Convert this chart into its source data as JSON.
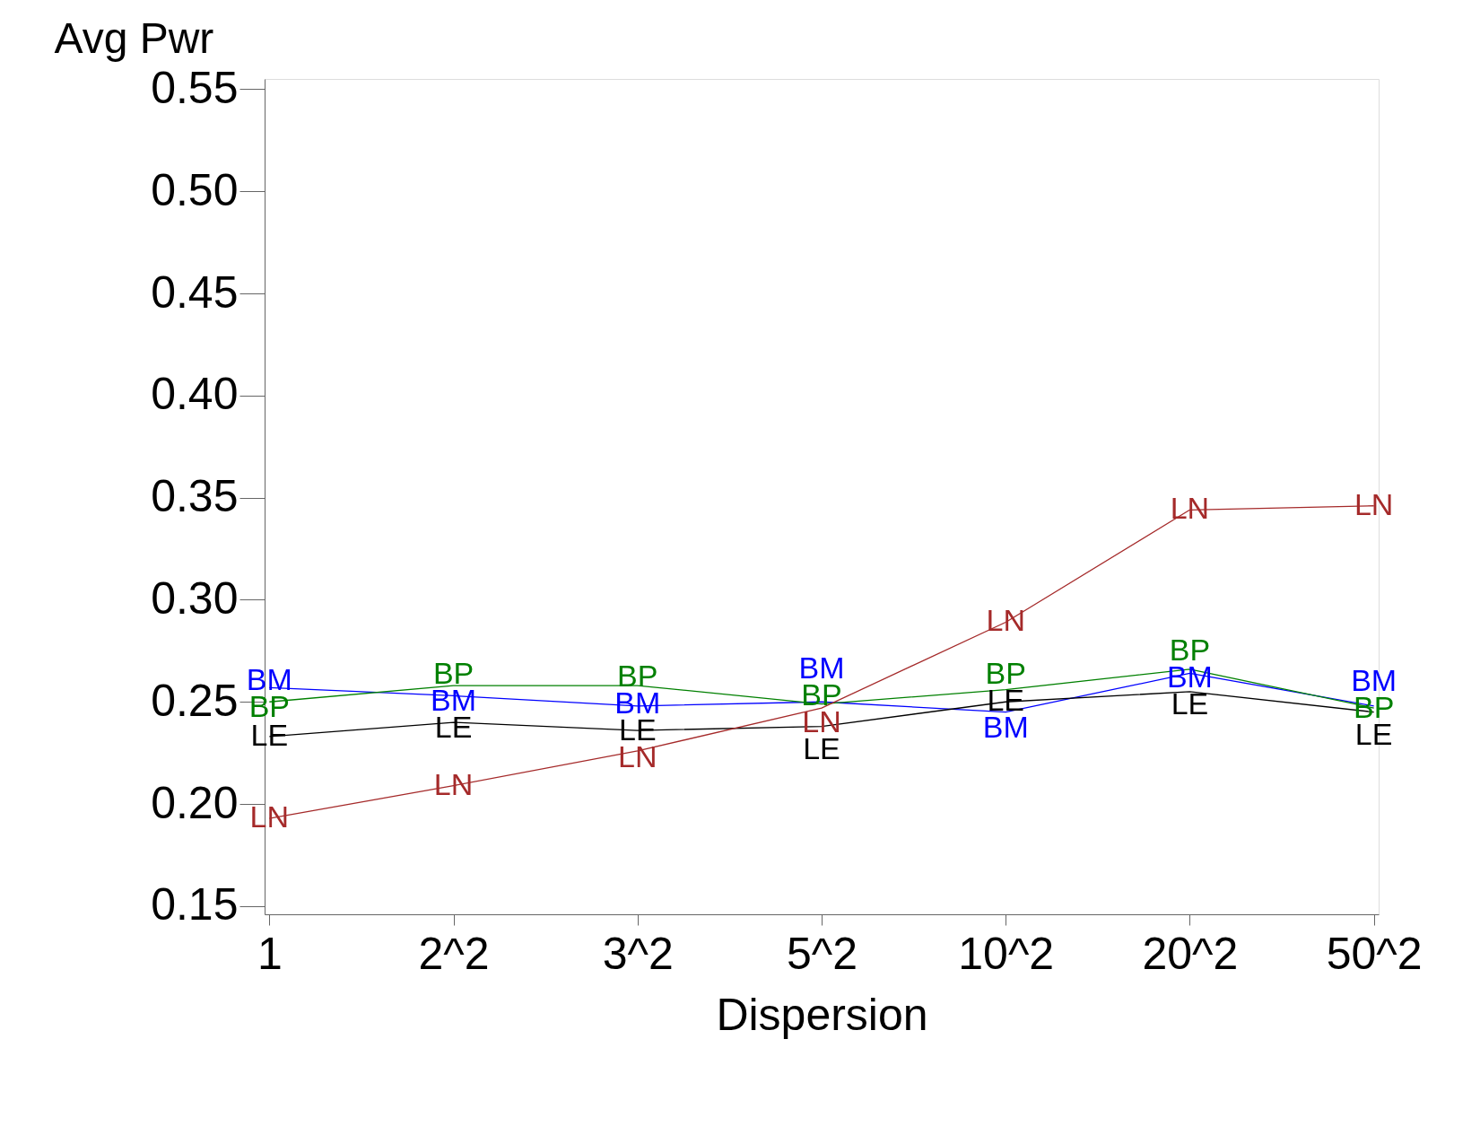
{
  "chart_data": {
    "type": "line",
    "xlabel": "Dispersion",
    "ylabel": "Avg Pwr",
    "categories": [
      "1",
      "2^2",
      "3^2",
      "5^2",
      "10^2",
      "20^2",
      "50^2"
    ],
    "series": [
      {
        "name": "BM",
        "color": "#0000ff",
        "values": [
          0.257,
          0.253,
          0.248,
          0.25,
          0.245,
          0.264,
          0.248
        ]
      },
      {
        "name": "BP",
        "color": "#008000",
        "values": [
          0.25,
          0.258,
          0.258,
          0.249,
          0.256,
          0.266,
          0.247
        ]
      },
      {
        "name": "LE",
        "color": "#000000",
        "values": [
          0.233,
          0.24,
          0.236,
          0.238,
          0.25,
          0.255,
          0.245
        ]
      },
      {
        "name": "LN",
        "color": "#a52a2a",
        "values": [
          0.193,
          0.209,
          0.226,
          0.247,
          0.289,
          0.344,
          0.346
        ]
      }
    ],
    "ylim": [
      0.146,
      0.555
    ],
    "yticks": [
      0.15,
      {
        "value": 0.2,
        "label": "0.20"
      },
      0.25,
      {
        "value": 0.3,
        "label": "0.30"
      },
      0.35,
      {
        "value": 0.4,
        "label": "0.40"
      },
      0.45,
      {
        "value": 0.5,
        "label": "0.50"
      },
      0.55
    ],
    "grid": false,
    "legend": false,
    "line_style": "solid"
  }
}
